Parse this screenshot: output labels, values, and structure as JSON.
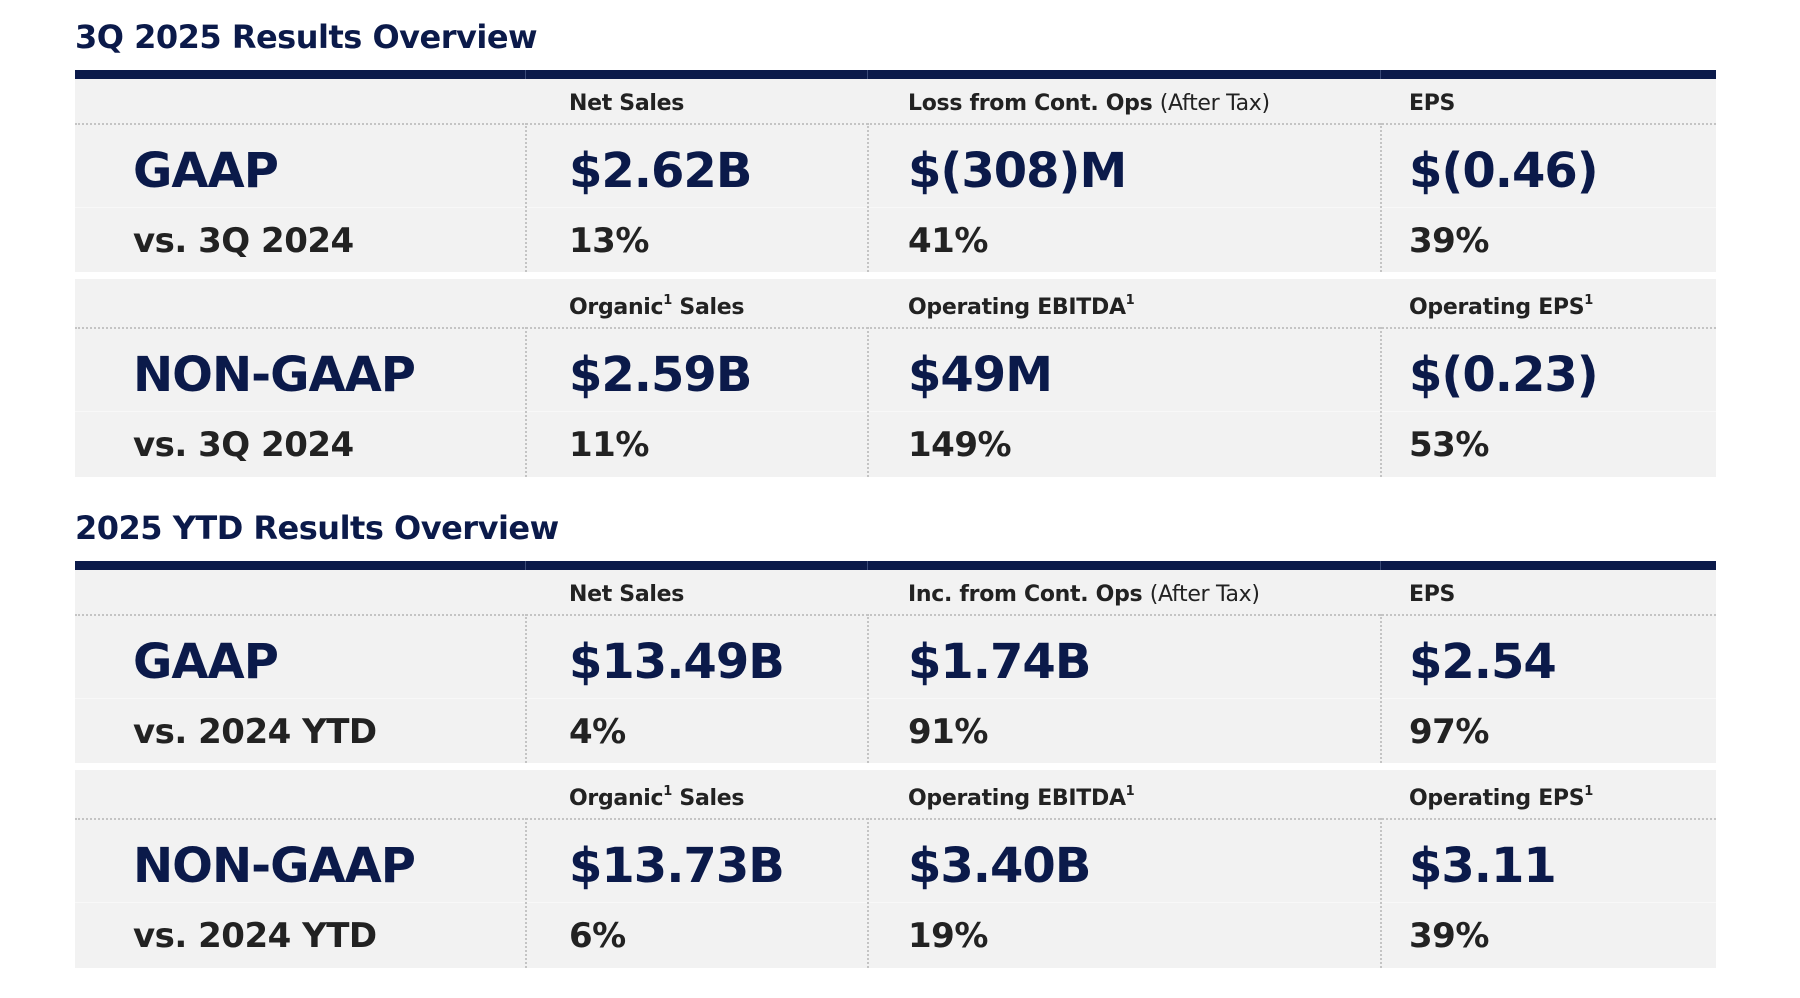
{
  "colors": {
    "navy": "#0b1a4a",
    "panel": "#f2f2f2",
    "text": "#222222"
  },
  "sections": [
    {
      "title": "3Q 2025 Results Overview",
      "blocks": [
        {
          "label": "GAAP",
          "comparison": "vs. 3Q 2024",
          "columns": [
            {
              "header": "Net Sales",
              "header_note": "",
              "sup": "",
              "header_tail": "",
              "value": "$2.62B",
              "change": "13%"
            },
            {
              "header": "Loss from Cont. Ops",
              "header_note": "(After Tax)",
              "sup": "",
              "header_tail": "",
              "value": "$(308)M",
              "change": "41%"
            },
            {
              "header": "EPS",
              "header_note": "",
              "sup": "",
              "header_tail": "",
              "value": "$(0.46)",
              "change": "39%"
            }
          ]
        },
        {
          "label": "NON-GAAP",
          "comparison": "vs. 3Q 2024",
          "columns": [
            {
              "header": "Organic",
              "header_note": "",
              "sup": "1",
              "header_tail": " Sales",
              "value": "$2.59B",
              "change": "11%"
            },
            {
              "header": "Operating EBITDA",
              "header_note": "",
              "sup": "1",
              "header_tail": "",
              "value": "$49M",
              "change": "149%"
            },
            {
              "header": "Operating EPS",
              "header_note": "",
              "sup": "1",
              "header_tail": "",
              "value": "$(0.23)",
              "change": "53%"
            }
          ]
        }
      ]
    },
    {
      "title": "2025 YTD Results Overview",
      "blocks": [
        {
          "label": "GAAP",
          "comparison": "vs. 2024 YTD",
          "columns": [
            {
              "header": "Net Sales",
              "header_note": "",
              "sup": "",
              "header_tail": "",
              "value": "$13.49B",
              "change": "4%"
            },
            {
              "header": "Inc. from Cont. Ops",
              "header_note": "(After Tax)",
              "sup": "",
              "header_tail": "",
              "value": "$1.74B",
              "change": "91%"
            },
            {
              "header": "EPS",
              "header_note": "",
              "sup": "",
              "header_tail": "",
              "value": "$2.54",
              "change": "97%"
            }
          ]
        },
        {
          "label": "NON-GAAP",
          "comparison": "vs. 2024 YTD",
          "columns": [
            {
              "header": "Organic",
              "header_note": "",
              "sup": "1",
              "header_tail": " Sales",
              "value": "$13.73B",
              "change": "6%"
            },
            {
              "header": "Operating EBITDA",
              "header_note": "",
              "sup": "1",
              "header_tail": "",
              "value": "$3.40B",
              "change": "19%"
            },
            {
              "header": "Operating EPS",
              "header_note": "",
              "sup": "1",
              "header_tail": "",
              "value": "$3.11",
              "change": "39%"
            }
          ]
        }
      ]
    }
  ]
}
